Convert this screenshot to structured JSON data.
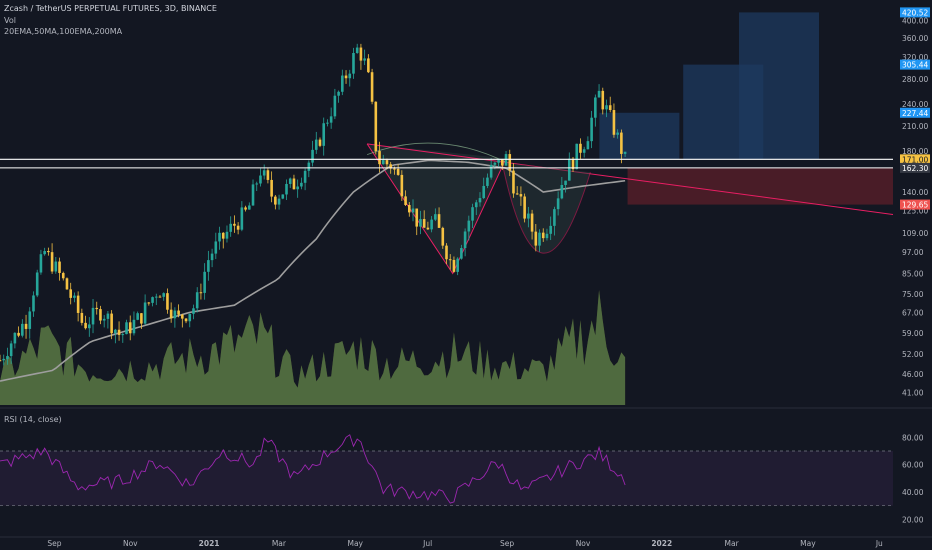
{
  "header": {
    "title": "Zcash / TetherUS PERPETUAL FUTURES, 3D, BINANCE",
    "vol_label": "Vol",
    "ma_label": "20EMA,50MA,100EMA,200MA"
  },
  "rsi_panel": {
    "label": "RSI (14, close)"
  },
  "colors": {
    "background": "#131722",
    "up": "#26a69a",
    "down": "#f5c243",
    "ma_line": "#9e9e9e",
    "rsi_line": "#9c27b0",
    "rsi_band": "#2a1f3d",
    "target_zone": "#1e3a5f",
    "stop_zone": "#5c1f2a",
    "pattern_line": "#e91e63",
    "level_line": "#ffffff",
    "price_tag_blue": "#2196f3",
    "price_tag_yellow": "#f5c243",
    "price_tag_red": "#ef5350"
  },
  "price_axis": {
    "ticks": [
      "400.00",
      "360.00",
      "320.00",
      "280.00",
      "240.00",
      "210.00",
      "180.00",
      "140.00",
      "125.00",
      "109.00",
      "97.00",
      "85.00",
      "75.00",
      "67.00",
      "59.00",
      "52.00",
      "46.00",
      "41.00"
    ],
    "tags": [
      {
        "value": "420.52",
        "color": "blue"
      },
      {
        "value": "305.44",
        "color": "blue"
      },
      {
        "value": "227.44",
        "color": "blue"
      },
      {
        "value": "171.00",
        "color": "yellow"
      },
      {
        "value": "162.30",
        "color": "dark"
      },
      {
        "value": "129.65",
        "color": "red"
      }
    ]
  },
  "rsi_axis": {
    "ticks": [
      "80.00",
      "60.00",
      "40.00",
      "20.00"
    ]
  },
  "time_axis": {
    "ticks": [
      {
        "label": "Sep",
        "bold": false
      },
      {
        "label": "Nov",
        "bold": false
      },
      {
        "label": "2021",
        "bold": true
      },
      {
        "label": "Mar",
        "bold": false
      },
      {
        "label": "May",
        "bold": false
      },
      {
        "label": "Jul",
        "bold": false
      },
      {
        "label": "Sep",
        "bold": false
      },
      {
        "label": "Nov",
        "bold": false
      },
      {
        "label": "2022",
        "bold": true
      },
      {
        "label": "Mar",
        "bold": false
      },
      {
        "label": "May",
        "bold": false
      },
      {
        "label": "Ju",
        "bold": false
      }
    ]
  },
  "chart_data": {
    "type": "candlestick",
    "symbol": "Zcash / TetherUS PERPETUAL FUTURES",
    "interval": "3D",
    "exchange": "BINANCE",
    "price_scale": "log",
    "ylim": [
      38,
      440
    ],
    "x_range": [
      "2020-07-20",
      "2022-07-10"
    ],
    "key_levels": [
      171.0,
      162.3
    ],
    "targets": [
      227.44,
      305.44,
      420.52
    ],
    "stop": 129.65,
    "pattern": {
      "name": "",
      "left_top": {
        "date": "2021-05-12",
        "price": 188
      },
      "head_low": {
        "date": "2021-07-20",
        "price": 85
      },
      "neck_right": {
        "date": "2021-09-01",
        "price": 172
      },
      "cup_low": {
        "date": "2021-09-28",
        "price": 93
      },
      "cup_right": {
        "date": "2021-11-08",
        "price": 158
      },
      "trend_end": {
        "date": "2022-07-10",
        "price": 122
      }
    },
    "price_anchors": [
      [
        "2020-07-20",
        50
      ],
      [
        "2020-08-10",
        64
      ],
      [
        "2020-08-25",
        97
      ],
      [
        "2020-09-10",
        80
      ],
      [
        "2020-09-25",
        62
      ],
      [
        "2020-10-10",
        68
      ],
      [
        "2020-10-25",
        58
      ],
      [
        "2020-11-10",
        65
      ],
      [
        "2020-11-25",
        78
      ],
      [
        "2020-12-10",
        64
      ],
      [
        "2020-12-25",
        70
      ],
      [
        "2021-01-05",
        95
      ],
      [
        "2021-01-20",
        110
      ],
      [
        "2021-02-05",
        125
      ],
      [
        "2021-02-15",
        160
      ],
      [
        "2021-02-25",
        135
      ],
      [
        "2021-03-15",
        148
      ],
      [
        "2021-03-30",
        175
      ],
      [
        "2021-04-10",
        220
      ],
      [
        "2021-04-20",
        260
      ],
      [
        "2021-05-05",
        340
      ],
      [
        "2021-05-12",
        295
      ],
      [
        "2021-05-20",
        170
      ],
      [
        "2021-06-01",
        165
      ],
      [
        "2021-06-15",
        130
      ],
      [
        "2021-06-25",
        110
      ],
      [
        "2021-07-05",
        118
      ],
      [
        "2021-07-20",
        88
      ],
      [
        "2021-08-05",
        125
      ],
      [
        "2021-08-20",
        160
      ],
      [
        "2021-09-01",
        172
      ],
      [
        "2021-09-10",
        135
      ],
      [
        "2021-09-25",
        105
      ],
      [
        "2021-10-05",
        115
      ],
      [
        "2021-10-20",
        160
      ],
      [
        "2021-11-05",
        195
      ],
      [
        "2021-11-15",
        255
      ],
      [
        "2021-11-25",
        215
      ],
      [
        "2021-12-06",
        170
      ]
    ],
    "ma_anchors": [
      [
        "2020-07-20",
        44
      ],
      [
        "2020-09-01",
        47
      ],
      [
        "2020-10-01",
        56
      ],
      [
        "2020-11-15",
        62
      ],
      [
        "2020-12-20",
        67
      ],
      [
        "2021-01-25",
        70
      ],
      [
        "2021-03-01",
        82
      ],
      [
        "2021-04-01",
        105
      ],
      [
        "2021-05-01",
        140
      ],
      [
        "2021-06-01",
        165
      ],
      [
        "2021-07-01",
        170
      ],
      [
        "2021-08-01",
        168
      ],
      [
        "2021-09-01",
        162
      ],
      [
        "2021-10-01",
        140
      ],
      [
        "2021-11-01",
        145
      ],
      [
        "2021-12-06",
        150
      ]
    ],
    "volume_anchors": [
      [
        "2020-07-20",
        0.25
      ],
      [
        "2020-08-25",
        0.55
      ],
      [
        "2020-10-01",
        0.3
      ],
      [
        "2020-11-20",
        0.35
      ],
      [
        "2021-01-01",
        0.45
      ],
      [
        "2021-02-15",
        0.6
      ],
      [
        "2021-03-15",
        0.25
      ],
      [
        "2021-05-05",
        0.5
      ],
      [
        "2021-06-01",
        0.35
      ],
      [
        "2021-07-20",
        0.45
      ],
      [
        "2021-08-25",
        0.35
      ],
      [
        "2021-10-01",
        0.3
      ],
      [
        "2021-11-15",
        0.75
      ],
      [
        "2021-12-06",
        0.35
      ]
    ],
    "rsi_anchors": [
      [
        "2020-07-20",
        60
      ],
      [
        "2020-08-25",
        70
      ],
      [
        "2020-09-20",
        44
      ],
      [
        "2020-10-25",
        48
      ],
      [
        "2020-11-25",
        62
      ],
      [
        "2020-12-20",
        45
      ],
      [
        "2021-01-15",
        70
      ],
      [
        "2021-02-10",
        60
      ],
      [
        "2021-02-20",
        78
      ],
      [
        "2021-03-15",
        50
      ],
      [
        "2021-04-15",
        72
      ],
      [
        "2021-05-05",
        80
      ],
      [
        "2021-05-25",
        42
      ],
      [
        "2021-07-20",
        36
      ],
      [
        "2021-08-25",
        62
      ],
      [
        "2021-09-15",
        40
      ],
      [
        "2021-10-20",
        58
      ],
      [
        "2021-11-15",
        68
      ],
      [
        "2021-12-06",
        50
      ]
    ]
  }
}
